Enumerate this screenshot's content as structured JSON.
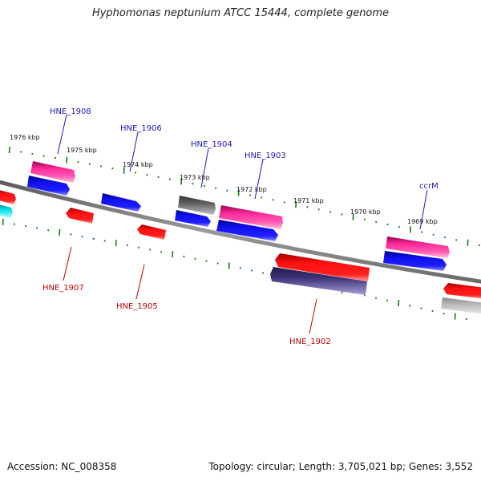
{
  "title": "Hyphomonas neptunium ATCC 15444, complete genome",
  "footer": {
    "accession": "Accession: NC_008358",
    "summary": "Topology: circular; Length: 3,705,021 bp; Genes: 3,552"
  },
  "scale_labels": [
    "1976 kbp",
    "1975 kbp",
    "1974 kbp",
    "1973 kbp",
    "1972 kbp",
    "1971 kbp",
    "1970 kbp",
    "1969 kbp"
  ],
  "gene_labels": {
    "forward": [
      "HNE_1908",
      "HNE_1906",
      "HNE_1904",
      "HNE_1903",
      "ccrM"
    ],
    "reverse": [
      "HNE_1907",
      "HNE_1905",
      "HNE_1902"
    ]
  },
  "colors": {
    "backbone": "#808080",
    "tick": "#1a7a1a",
    "forward_label": "#1a1ab0",
    "reverse_label": "#c00000",
    "magenta": "#ff2a9a",
    "blue": "#1010ee",
    "red": "#ff1010",
    "cyan": "#00e0e8",
    "gray": "#606060",
    "navy": "#3c3478",
    "lightgray": "#b8b8b8"
  }
}
